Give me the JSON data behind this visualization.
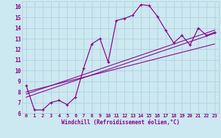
{
  "xlabel": "Windchill (Refroidissement éolien,°C)",
  "xlim": [
    -0.5,
    23.5
  ],
  "ylim": [
    6,
    16.5
  ],
  "xticks": [
    0,
    1,
    2,
    3,
    4,
    5,
    6,
    7,
    8,
    9,
    10,
    11,
    12,
    13,
    14,
    15,
    16,
    17,
    18,
    19,
    20,
    21,
    22,
    23
  ],
  "yticks": [
    6,
    7,
    8,
    9,
    10,
    11,
    12,
    13,
    14,
    15,
    16
  ],
  "bg_color": "#cce8f0",
  "grid_color": "#aaccdd",
  "line_color": "#880088",
  "line1_x": [
    0,
    1,
    2,
    3,
    4,
    5,
    6,
    7,
    8,
    9,
    10,
    11,
    12,
    13,
    14,
    15,
    16,
    17,
    18,
    19,
    20,
    21,
    22,
    23
  ],
  "line1_y": [
    8.6,
    6.3,
    6.3,
    7.0,
    7.2,
    6.8,
    7.5,
    10.2,
    12.5,
    13.0,
    10.8,
    14.7,
    14.9,
    15.2,
    16.2,
    16.1,
    15.1,
    13.8,
    12.6,
    13.3,
    12.4,
    14.0,
    13.3,
    13.6
  ],
  "line2_x": [
    0,
    23
  ],
  "line2_y": [
    7.5,
    13.5
  ],
  "line3_x": [
    0,
    23
  ],
  "line3_y": [
    7.8,
    13.8
  ],
  "line4_x": [
    0,
    23
  ],
  "line4_y": [
    8.0,
    12.5
  ]
}
